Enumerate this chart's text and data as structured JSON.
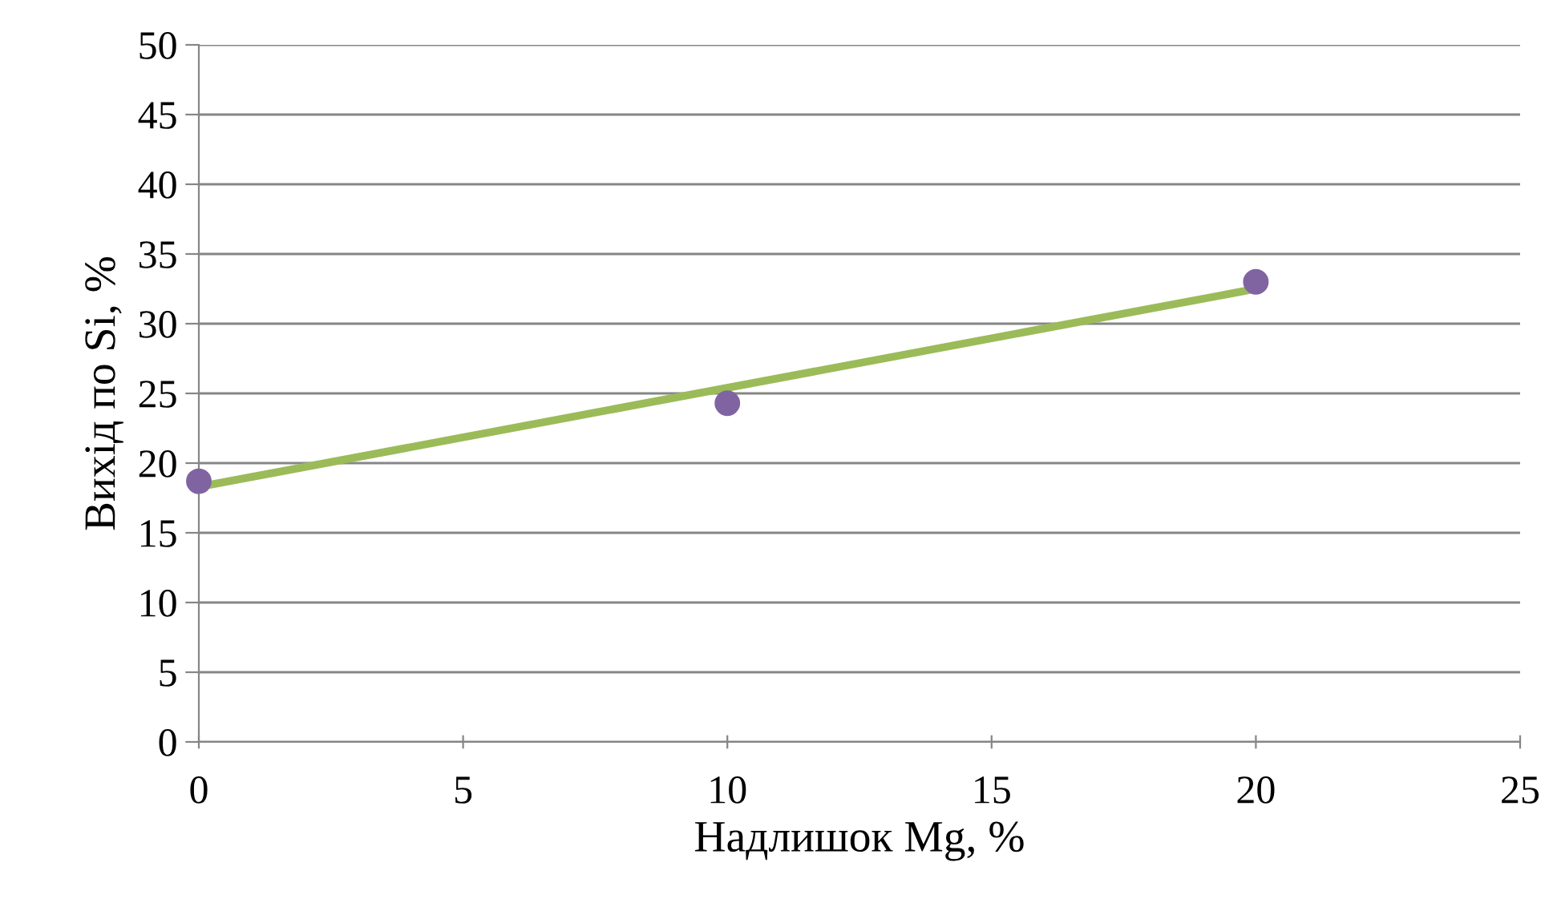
{
  "chart_data": {
    "type": "scatter",
    "xlabel": "Надлишок Mg, %",
    "ylabel": "Вихід по Si, %",
    "xlim": [
      0,
      25
    ],
    "xticks": [
      0,
      5,
      10,
      15,
      20,
      25
    ],
    "ylim": [
      0,
      50
    ],
    "yticks": [
      0,
      5,
      10,
      15,
      20,
      25,
      30,
      35,
      40,
      45,
      50
    ],
    "grid": "y",
    "marker": "circle",
    "series": [
      {
        "type": "line",
        "color": "#9bbb59",
        "x": [
          0,
          20
        ],
        "values": [
          18.3,
          32.5
        ],
        "marker": "none",
        "line_style": "solid"
      },
      {
        "color": "#8064a2",
        "x": [
          0,
          10,
          20
        ],
        "values": [
          18.7,
          24.3,
          33.0
        ]
      }
    ]
  }
}
